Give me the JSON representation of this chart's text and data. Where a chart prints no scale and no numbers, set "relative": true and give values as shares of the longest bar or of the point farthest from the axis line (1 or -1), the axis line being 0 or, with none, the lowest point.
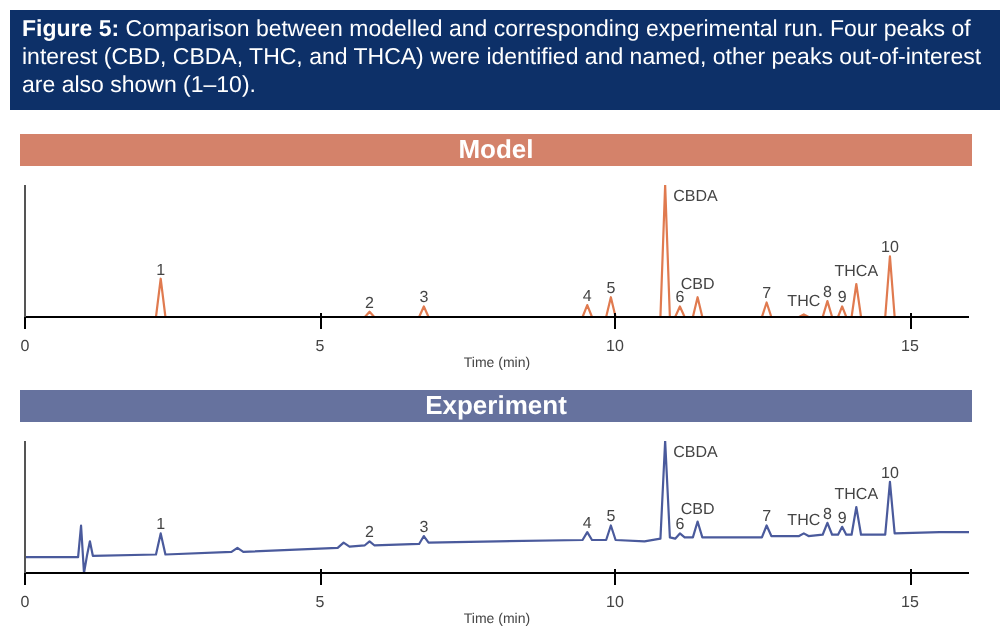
{
  "chart_data": [
    {
      "type": "line",
      "title": "Model",
      "xlabel": "Time (min)",
      "relative": true,
      "xlim": [
        0,
        16
      ],
      "xticks": [
        0,
        5,
        10,
        15
      ],
      "grid": false,
      "annotations": [
        "Figure 5: Comparison between modelled and corresponding experimental run. Four peaks of interest (CBD, CBDA, THC, and THCA) were identified and named, other peaks out-of-interest are also shown (1–10).",
        {
          "text": "1",
          "x": 2.3,
          "y": 0.29
        },
        {
          "text": "2",
          "x": 5.84,
          "y": 0.04
        },
        {
          "text": "3",
          "x": 6.76,
          "y": 0.08
        },
        {
          "text": "4",
          "x": 9.53,
          "y": 0.09
        },
        {
          "text": "5",
          "x": 9.93,
          "y": 0.15
        },
        {
          "text": "CBDA",
          "x": 10.85,
          "y": 1
        },
        {
          "text": "6",
          "x": 11.1,
          "y": 0.08
        },
        {
          "text": "CBD",
          "x": 11.4,
          "y": 0.15
        },
        {
          "text": "7",
          "x": 12.57,
          "y": 0.11
        },
        {
          "text": "THC",
          "x": 13.2,
          "y": 0.02
        },
        {
          "text": "8",
          "x": 13.6,
          "y": 0.12
        },
        {
          "text": "9",
          "x": 13.85,
          "y": 0.08
        },
        {
          "text": "THCA",
          "x": 14.09,
          "y": 0.25
        },
        {
          "text": "10",
          "x": 14.66,
          "y": 0.46
        }
      ],
      "series": [
        {
          "color": "#e07a4f",
          "x": [
            0,
            2.22,
            2.3,
            2.38,
            5.76,
            5.84,
            5.92,
            6.68,
            6.76,
            6.84,
            9.45,
            9.53,
            9.61,
            9.85,
            9.93,
            10.01,
            10.77,
            10.85,
            10.93,
            11.02,
            11.1,
            11.18,
            11.32,
            11.4,
            11.48,
            12.49,
            12.57,
            12.65,
            13.12,
            13.2,
            13.28,
            13.52,
            13.6,
            13.68,
            13.78,
            13.85,
            13.92,
            14.01,
            14.09,
            14.17,
            14.58,
            14.66,
            14.74,
            16
          ],
          "values": [
            0,
            0,
            0.29,
            0,
            0,
            0.04,
            0,
            0,
            0.08,
            0,
            0,
            0.09,
            0,
            0,
            0.15,
            0,
            0,
            1,
            0,
            0,
            0.08,
            0,
            0,
            0.15,
            0,
            0,
            0.11,
            0,
            0,
            0.02,
            0,
            0,
            0.12,
            0,
            0,
            0.08,
            0,
            0,
            0.25,
            0,
            0,
            0.46,
            0,
            0
          ]
        }
      ]
    },
    {
      "type": "line",
      "title": "Experiment",
      "xlabel": "Time (min)",
      "relative": true,
      "xlim": [
        0,
        16
      ],
      "xticks": [
        0,
        5,
        10,
        15
      ],
      "grid": false,
      "annotations": [
        {
          "text": "1",
          "x": 2.3,
          "y": 0.3
        },
        {
          "text": "2",
          "x": 5.84,
          "y": 0.24
        },
        {
          "text": "3",
          "x": 6.76,
          "y": 0.28
        },
        {
          "text": "4",
          "x": 9.53,
          "y": 0.31
        },
        {
          "text": "5",
          "x": 9.93,
          "y": 0.36
        },
        {
          "text": "CBDA",
          "x": 10.85,
          "y": 1
        },
        {
          "text": "6",
          "x": 11.1,
          "y": 0.3
        },
        {
          "text": "CBD",
          "x": 11.4,
          "y": 0.39
        },
        {
          "text": "7",
          "x": 12.57,
          "y": 0.36
        },
        {
          "text": "THC",
          "x": 13.2,
          "y": 0.3
        },
        {
          "text": "8",
          "x": 13.6,
          "y": 0.38
        },
        {
          "text": "9",
          "x": 13.85,
          "y": 0.35
        },
        {
          "text": "THCA",
          "x": 14.09,
          "y": 0.5
        },
        {
          "text": "10",
          "x": 14.66,
          "y": 0.69
        }
      ],
      "series": [
        {
          "color": "#4a5a9c",
          "x": [
            0,
            0.9,
            0.95,
            1.0,
            1.05,
            1.1,
            1.15,
            2.22,
            2.3,
            2.38,
            3.5,
            3.6,
            3.7,
            5.3,
            5.4,
            5.5,
            5.76,
            5.84,
            5.92,
            6.68,
            6.76,
            6.84,
            8,
            9.45,
            9.53,
            9.61,
            9.85,
            9.93,
            10.01,
            10.5,
            10.77,
            10.85,
            10.93,
            11.02,
            11.1,
            11.18,
            11.32,
            11.4,
            11.48,
            12.49,
            12.57,
            12.65,
            13.12,
            13.2,
            13.28,
            13.52,
            13.6,
            13.68,
            13.78,
            13.85,
            13.92,
            14.01,
            14.09,
            14.17,
            14.58,
            14.66,
            14.74,
            15.5,
            16
          ],
          "values": [
            0.12,
            0.12,
            0.36,
            0,
            0.13,
            0.24,
            0.13,
            0.14,
            0.3,
            0.14,
            0.16,
            0.19,
            0.16,
            0.19,
            0.23,
            0.2,
            0.21,
            0.24,
            0.21,
            0.22,
            0.28,
            0.23,
            0.24,
            0.25,
            0.31,
            0.25,
            0.25,
            0.36,
            0.25,
            0.24,
            0.26,
            1,
            0.27,
            0.26,
            0.3,
            0.27,
            0.27,
            0.39,
            0.27,
            0.27,
            0.36,
            0.28,
            0.28,
            0.3,
            0.28,
            0.29,
            0.38,
            0.29,
            0.29,
            0.35,
            0.29,
            0.29,
            0.5,
            0.29,
            0.29,
            0.69,
            0.3,
            0.31,
            0.31
          ]
        }
      ]
    }
  ]
}
